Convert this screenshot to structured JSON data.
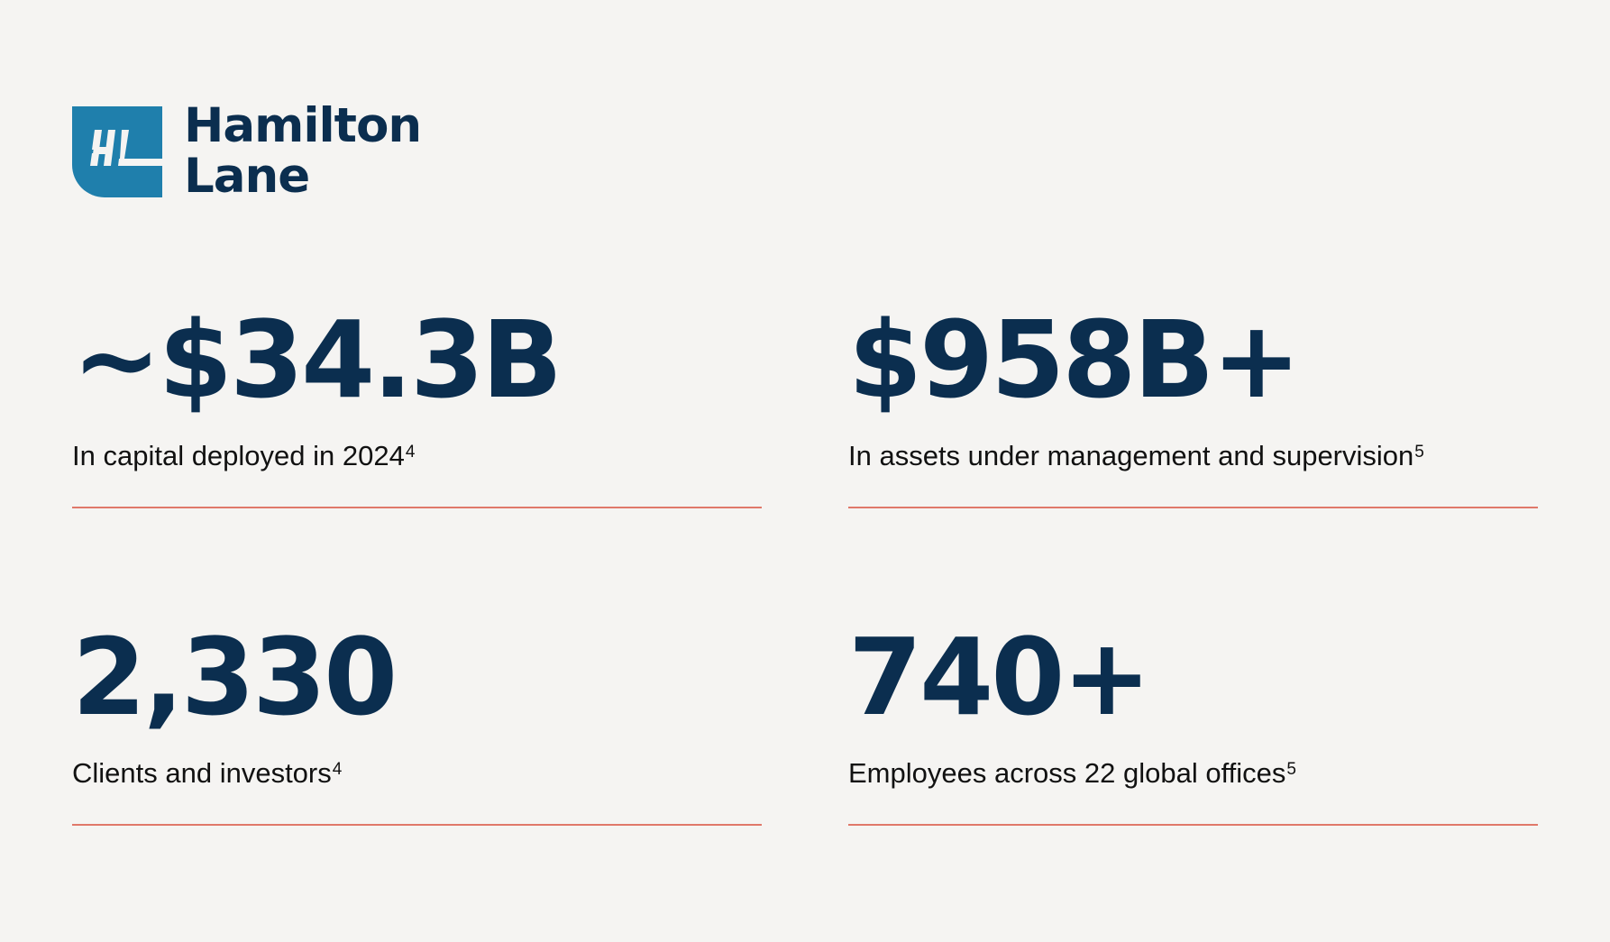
{
  "brand": {
    "name_line1": "Hamilton",
    "name_line2": "Lane",
    "monogram": "HL",
    "mark_color": "#1f7fac",
    "text_color": "#0b2e4f",
    "accent_line_color": "#e0786a"
  },
  "stats": [
    {
      "value": "~$34.3B",
      "label": "In capital deployed in 2024",
      "footnote": "4"
    },
    {
      "value": "$958B+",
      "label": "In assets under management and supervision",
      "footnote": "5"
    },
    {
      "value": "2,330",
      "label": "Clients and investors",
      "footnote": "4"
    },
    {
      "value": "740+",
      "label": "Employees across 22 global offices",
      "footnote": "5"
    }
  ]
}
